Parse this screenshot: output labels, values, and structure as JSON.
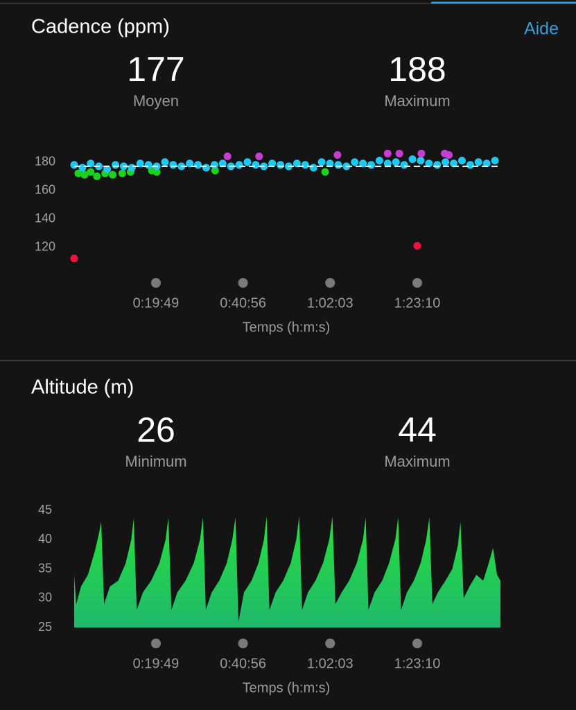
{
  "help_link": "Aide",
  "chart_data": [
    {
      "type": "scatter",
      "title": "Cadence (ppm)",
      "stats": [
        {
          "value": 177,
          "label": "Moyen"
        },
        {
          "value": 188,
          "label": "Maximum"
        }
      ],
      "xlabel": "Temps (h:m:s)",
      "xlim": [
        0,
        6200
      ],
      "xticks": [
        {
          "value": 1189,
          "label": "0:19:49"
        },
        {
          "value": 2456,
          "label": "0:40:56"
        },
        {
          "value": 3723,
          "label": "1:02:03"
        },
        {
          "value": 4990,
          "label": "1:23:10"
        }
      ],
      "ylim": [
        110,
        195
      ],
      "yticks": [
        120,
        140,
        160,
        180
      ],
      "series": [
        {
          "color": "#1fd11f",
          "x": [
            60,
            150,
            240,
            330,
            450,
            560,
            700,
            820,
            1130,
            1200,
            2050,
            3650
          ],
          "values": [
            172,
            171,
            173,
            170,
            172,
            171,
            172,
            173,
            174,
            173,
            174,
            173
          ]
        },
        {
          "color": "#1ec8f0",
          "x": [
            0,
            120,
            240,
            360,
            480,
            600,
            720,
            840,
            960,
            1080,
            1200,
            1320,
            1440,
            1560,
            1680,
            1800,
            1920,
            2040,
            2160,
            2280,
            2400,
            2520,
            2640,
            2760,
            2880,
            3000,
            3120,
            3240,
            3360,
            3480,
            3600,
            3720,
            3840,
            3960,
            4080,
            4200,
            4320,
            4440,
            4560,
            4680,
            4800,
            4920,
            5040,
            5160,
            5280,
            5400,
            5520,
            5640,
            5760,
            5880,
            6000,
            6120
          ],
          "values": [
            178,
            176,
            179,
            177,
            175,
            178,
            177,
            176,
            179,
            178,
            177,
            180,
            178,
            177,
            179,
            178,
            176,
            178,
            179,
            177,
            178,
            180,
            178,
            177,
            179,
            178,
            177,
            179,
            178,
            176,
            180,
            179,
            178,
            177,
            180,
            179,
            178,
            181,
            179,
            180,
            178,
            182,
            181,
            179,
            178,
            180,
            179,
            181,
            178,
            180,
            179,
            181
          ]
        },
        {
          "color": "#c43fd0",
          "x": [
            2230,
            2690,
            3830,
            4560,
            4730,
            5050,
            5390,
            5450
          ],
          "values": [
            184,
            184,
            185,
            186,
            186,
            186,
            186,
            185
          ]
        },
        {
          "color": "#f0123c",
          "x": [
            0,
            4990
          ],
          "values": [
            112,
            121
          ]
        }
      ]
    },
    {
      "type": "area",
      "title": "Altitude (m)",
      "stats": [
        {
          "value": 26,
          "label": "Minimum"
        },
        {
          "value": 44,
          "label": "Maximum"
        }
      ],
      "xlabel": "Temps (h:m:s)",
      "xlim": [
        0,
        6200
      ],
      "xticks": [
        {
          "value": 1189,
          "label": "0:19:49"
        },
        {
          "value": 2456,
          "label": "0:40:56"
        },
        {
          "value": 3723,
          "label": "1:02:03"
        },
        {
          "value": 4990,
          "label": "1:23:10"
        }
      ],
      "ylim": [
        25,
        46
      ],
      "yticks": [
        25,
        30,
        35,
        40,
        45
      ],
      "series": [
        {
          "gradient": [
            "#25e03a",
            "#20b86c"
          ],
          "x": [
            0,
            30,
            100,
            200,
            300,
            360,
            393,
            435,
            520,
            640,
            750,
            830,
            866,
            910,
            1000,
            1120,
            1240,
            1330,
            1370,
            1415,
            1500,
            1620,
            1740,
            1830,
            1873,
            1915,
            2000,
            2110,
            2220,
            2300,
            2346,
            2390,
            2470,
            2580,
            2680,
            2760,
            2799,
            2840,
            2930,
            3040,
            3150,
            3230,
            3273,
            3315,
            3400,
            3510,
            3620,
            3710,
            3756,
            3800,
            3890,
            4000,
            4110,
            4200,
            4240,
            4280,
            4370,
            4480,
            4580,
            4670,
            4713,
            4755,
            4840,
            4940,
            5040,
            5120,
            5166,
            5210,
            5290,
            5400,
            5500,
            5580,
            5619,
            5665,
            5750,
            5850,
            5950,
            6030,
            6092,
            6150,
            6200
          ],
          "values": [
            34,
            29,
            32,
            34,
            38,
            41,
            43.1,
            29,
            32,
            33,
            36,
            40,
            43.6,
            28,
            31,
            33,
            36,
            40,
            43.8,
            28,
            31,
            33,
            36,
            40,
            43.8,
            28,
            31,
            33,
            36,
            40,
            43.8,
            26,
            31,
            33,
            36,
            40,
            44,
            28,
            31,
            33,
            36,
            40,
            44,
            28,
            31,
            33,
            36,
            40,
            44,
            29,
            31,
            33,
            36,
            40,
            43.8,
            28,
            31,
            33,
            36,
            40,
            43.8,
            28,
            31,
            33,
            36,
            40,
            43.8,
            29,
            31,
            33,
            35,
            39,
            43,
            30,
            32,
            34,
            33,
            36,
            38.6,
            34,
            33
          ]
        }
      ]
    }
  ]
}
